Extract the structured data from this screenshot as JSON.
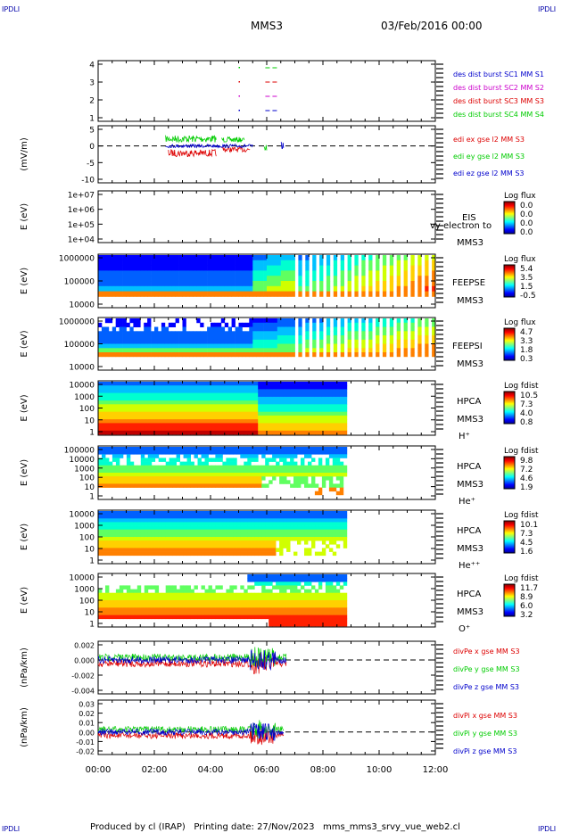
{
  "header": {
    "corner_tl": "IPDLI",
    "corner_tr": "IPDLI",
    "corner_bl": "IPDLI",
    "corner_br": "IPDLI",
    "title": "MMS3",
    "date": "03/Feb/2016 00:00"
  },
  "footer": {
    "text": "Produced by cl (IRAP)   Printing date: 27/Nov/2023   mms_mms3_srvy_vue_web2.cl"
  },
  "colors": {
    "red": "#dd0000",
    "green": "#00cc00",
    "blue": "#0000cc",
    "magenta": "#cc00cc"
  },
  "chart_data": [
    {
      "type": "line",
      "name": "burst",
      "yticks": [
        "4",
        "3",
        "2",
        "1"
      ],
      "legend": [
        {
          "label": "des dist burst SC1 MM S1",
          "color": "#0000cc"
        },
        {
          "label": "des dist burst SC2 MM S2",
          "color": "#cc00cc"
        },
        {
          "label": "des dist burst SC3 MM S3",
          "color": "#dd0000"
        },
        {
          "label": "des dist burst SC4 MM S4",
          "color": "#00cc00"
        }
      ],
      "intervals": [
        {
          "sc": 4,
          "start": 5.95,
          "end": 6.45
        },
        {
          "sc": 3,
          "start": 5.95,
          "end": 6.45
        },
        {
          "sc": 2,
          "start": 5.95,
          "end": 6.45
        },
        {
          "sc": 1,
          "start": 5.95,
          "end": 6.45
        }
      ]
    },
    {
      "type": "line",
      "name": "edi",
      "ylabel": "(mV/m)",
      "yticks": [
        "5",
        "0",
        "-5",
        "-10"
      ],
      "ylim": [
        -10,
        8
      ],
      "legend": [
        {
          "label": "edi ex gse l2 MM S3",
          "color": "#dd0000"
        },
        {
          "label": "edi ey gse l2 MM S3",
          "color": "#00cc00"
        },
        {
          "label": "edi ez gse l2 MM S3",
          "color": "#0000cc"
        }
      ],
      "data_span_h": [
        2.4,
        6.6
      ]
    },
    {
      "type": "heatmap",
      "name": "eis",
      "ylabel": "E (eV)",
      "yticks": [
        "1e+07",
        "1e+06",
        "1e+05",
        "1e+04"
      ],
      "side": [
        "EIS",
        "MMS3"
      ],
      "side_extra": "vy electron to",
      "cbar_title": "Log flux",
      "cbar_ticks": [
        "0.0",
        "0.0",
        "0.0",
        "0.0"
      ]
    },
    {
      "type": "heatmap",
      "name": "feepse",
      "ylabel": "E (eV)",
      "yticks": [
        "1000000",
        "100000",
        "10000"
      ],
      "side": [
        "FEEPSE",
        "MMS3"
      ],
      "cbar_title": "Log flux",
      "cbar_ticks": [
        "5.4",
        "3.5",
        "1.5",
        "-0.5"
      ]
    },
    {
      "type": "heatmap",
      "name": "feepsi",
      "ylabel": "E (eV)",
      "yticks": [
        "1000000",
        "100000",
        "10000"
      ],
      "side": [
        "FEEPSI",
        "MMS3"
      ],
      "cbar_title": "Log flux",
      "cbar_ticks": [
        "4.7",
        "3.3",
        "1.8",
        "0.3"
      ]
    },
    {
      "type": "heatmap",
      "name": "hpca_h",
      "ylabel": "E (eV)",
      "yticks": [
        "10000",
        "1000",
        "100",
        "10",
        "1"
      ],
      "side": [
        "HPCA",
        "MMS3",
        "H⁺"
      ],
      "cbar_title": "Log fdist",
      "cbar_ticks": [
        "10.5",
        "7.3",
        "4.0",
        "0.8"
      ]
    },
    {
      "type": "heatmap",
      "name": "hpca_he",
      "ylabel": "E (eV)",
      "yticks": [
        "100000",
        "10000",
        "1000",
        "100",
        "10",
        "1"
      ],
      "side": [
        "HPCA",
        "MMS3",
        "He⁺"
      ],
      "cbar_title": "Log fdist",
      "cbar_ticks": [
        "9.8",
        "7.2",
        "4.6",
        "1.9"
      ]
    },
    {
      "type": "heatmap",
      "name": "hpca_hepp",
      "ylabel": "E (eV)",
      "yticks": [
        "10000",
        "1000",
        "100",
        "10",
        "1"
      ],
      "side": [
        "HPCA",
        "MMS3",
        "He⁺⁺"
      ],
      "cbar_title": "Log fdist",
      "cbar_ticks": [
        "10.1",
        "7.3",
        "4.5",
        "1.6"
      ]
    },
    {
      "type": "heatmap",
      "name": "hpca_o",
      "ylabel": "E (eV)",
      "yticks": [
        "10000",
        "1000",
        "100",
        "10",
        "1"
      ],
      "side": [
        "HPCA",
        "MMS3",
        "O⁺"
      ],
      "cbar_title": "Log fdist",
      "cbar_ticks": [
        "11.7",
        "8.9",
        "6.0",
        "3.2"
      ]
    },
    {
      "type": "line",
      "name": "divpe",
      "ylabel": "(nPa/km)",
      "yticks": [
        "0.002",
        "0.000",
        "-0.002",
        "-0.004"
      ],
      "ylim": [
        -0.0045,
        0.003
      ],
      "legend": [
        {
          "label": "divPe x gse MM S3",
          "color": "#dd0000"
        },
        {
          "label": "divPe y gse MM S3",
          "color": "#00cc00"
        },
        {
          "label": "divPe z gse MM S3",
          "color": "#0000cc"
        }
      ],
      "data_span_h": [
        0.0,
        6.7
      ]
    },
    {
      "type": "line",
      "name": "divpi",
      "ylabel": "(nPa/km)",
      "yticks": [
        "0.03",
        "0.02",
        "0.01",
        "0.00",
        "-0.01",
        "-0.02"
      ],
      "ylim": [
        -0.025,
        0.035
      ],
      "legend": [
        {
          "label": "divPi x gse MM S3",
          "color": "#dd0000"
        },
        {
          "label": "divPi y gse MM S3",
          "color": "#00cc00"
        },
        {
          "label": "divPi z gse MM S3",
          "color": "#0000cc"
        }
      ],
      "data_span_h": [
        0.0,
        6.6
      ]
    }
  ],
  "xaxis": {
    "ticks": [
      "00:00",
      "02:00",
      "04:00",
      "06:00",
      "08:00",
      "10:00",
      "12:00"
    ],
    "range_h": [
      0,
      12
    ]
  }
}
